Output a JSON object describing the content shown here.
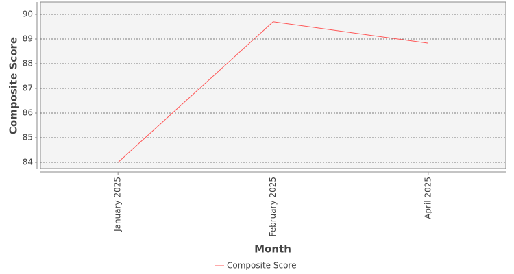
{
  "chart_data": {
    "type": "line",
    "x_label": "Month",
    "y_label": "Composite Score",
    "categories": [
      "January 2025",
      "February 2025",
      "April 2025"
    ],
    "series": [
      {
        "name": "Composite Score",
        "color": "#ff5555",
        "values": [
          84,
          89.7,
          88.83
        ]
      }
    ],
    "ylim": [
      83.75,
      90.5
    ],
    "yticks": [
      84,
      85,
      86,
      87,
      88,
      89,
      90
    ],
    "grid": true,
    "legend": "bottom"
  }
}
